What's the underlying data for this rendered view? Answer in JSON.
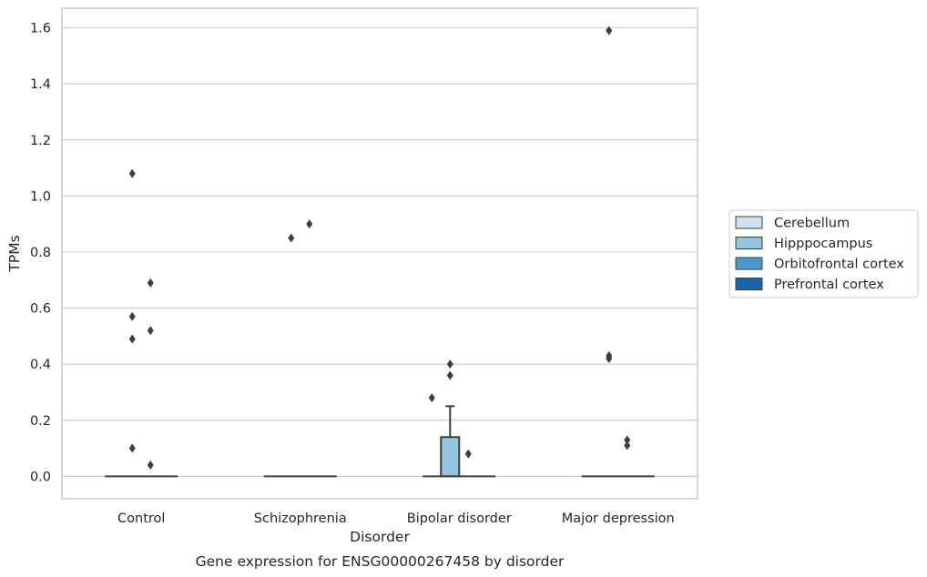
{
  "chart_data": {
    "type": "box",
    "title": "",
    "caption": "Gene expression for ENSG00000267458 by disorder",
    "xlabel": "Disorder",
    "ylabel": "TPMs",
    "ylim": [
      -0.08,
      1.67
    ],
    "yticks": [
      0.0,
      0.2,
      0.4,
      0.6,
      0.8,
      1.0,
      1.2,
      1.4,
      1.6
    ],
    "ytick_labels": [
      "0.0",
      "0.2",
      "0.4",
      "0.6",
      "0.8",
      "1.0",
      "1.2",
      "1.4",
      "1.6"
    ],
    "grid": "horizontal",
    "legend_position": "right",
    "categories": [
      "Control",
      "Schizophrenia",
      "Bipolar disorder",
      "Major depression"
    ],
    "series": [
      {
        "name": "Cerebellum",
        "color": "#d0e1f2",
        "boxes": [
          {
            "q1": 0,
            "median": 0,
            "q3": 0,
            "whisker_low": 0,
            "whisker_high": 0,
            "outliers": []
          },
          {
            "q1": 0,
            "median": 0,
            "q3": 0,
            "whisker_low": 0,
            "whisker_high": 0,
            "outliers": []
          },
          {
            "q1": 0,
            "median": 0,
            "q3": 0,
            "whisker_low": 0,
            "whisker_high": 0,
            "outliers": [
              0.28
            ]
          },
          {
            "q1": 0,
            "median": 0,
            "q3": 0,
            "whisker_low": 0,
            "whisker_high": 0,
            "outliers": []
          }
        ]
      },
      {
        "name": "Hipppocampus",
        "color": "#94c4df",
        "boxes": [
          {
            "q1": 0,
            "median": 0,
            "q3": 0,
            "whisker_low": 0,
            "whisker_high": 0,
            "outliers": [
              1.08,
              0.57,
              0.49,
              0.1
            ]
          },
          {
            "q1": 0,
            "median": 0,
            "q3": 0,
            "whisker_low": 0,
            "whisker_high": 0,
            "outliers": [
              0.85
            ]
          },
          {
            "q1": 0,
            "median": 0,
            "q3": 0.14,
            "whisker_low": 0,
            "whisker_high": 0.25,
            "outliers": [
              0.4,
              0.36
            ]
          },
          {
            "q1": 0,
            "median": 0,
            "q3": 0,
            "whisker_low": 0,
            "whisker_high": 0,
            "outliers": [
              1.59,
              0.43,
              0.42
            ]
          }
        ]
      },
      {
        "name": "Orbitofrontal cortex",
        "color": "#4a98c9",
        "boxes": [
          {
            "q1": 0,
            "median": 0,
            "q3": 0,
            "whisker_low": 0,
            "whisker_high": 0,
            "outliers": [
              0.69,
              0.52,
              0.04
            ]
          },
          {
            "q1": 0,
            "median": 0,
            "q3": 0,
            "whisker_low": 0,
            "whisker_high": 0,
            "outliers": [
              0.9
            ]
          },
          {
            "q1": 0,
            "median": 0,
            "q3": 0,
            "whisker_low": 0,
            "whisker_high": 0,
            "outliers": [
              0.08
            ]
          },
          {
            "q1": 0,
            "median": 0,
            "q3": 0,
            "whisker_low": 0,
            "whisker_high": 0,
            "outliers": [
              0.13,
              0.11
            ]
          }
        ]
      },
      {
        "name": "Prefrontal cortex",
        "color": "#1764ab",
        "boxes": [
          {
            "q1": 0,
            "median": 0,
            "q3": 0,
            "whisker_low": 0,
            "whisker_high": 0,
            "outliers": []
          },
          {
            "q1": 0,
            "median": 0,
            "q3": 0,
            "whisker_low": 0,
            "whisker_high": 0,
            "outliers": []
          },
          {
            "q1": 0,
            "median": 0,
            "q3": 0,
            "whisker_low": 0,
            "whisker_high": 0,
            "outliers": []
          },
          {
            "q1": 0,
            "median": 0,
            "q3": 0,
            "whisker_low": 0,
            "whisker_high": 0,
            "outliers": []
          }
        ]
      }
    ],
    "colors": {
      "grid": "#cccccc",
      "frame": "#cccccc",
      "box_edge": "#3d3d3d",
      "outlier": "#3d3d3d",
      "text": "#262626"
    }
  }
}
